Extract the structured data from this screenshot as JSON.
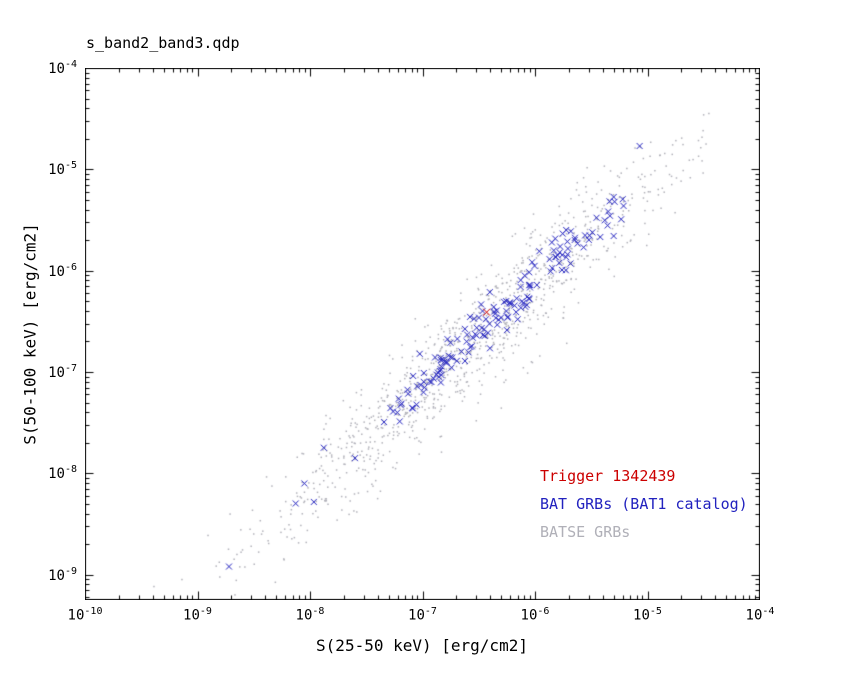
{
  "title": "s_band2_band3.qdp",
  "chart_data": {
    "type": "scatter",
    "title": "s_band2_band3.qdp",
    "xlabel": "S(25-50 keV) [erg/cm2]",
    "ylabel": "S(50-100 keV) [erg/cm2]",
    "x_scale": "log",
    "y_scale": "log",
    "x_range_log10": [
      -10,
      -4
    ],
    "y_range_log10": [
      -9.25,
      -4
    ],
    "x_tick_exponents": [
      -10,
      -9,
      -8,
      -7,
      -6,
      -5,
      -4
    ],
    "y_tick_exponents": [
      -9,
      -8,
      -7,
      -6,
      -5,
      -4
    ],
    "grid": false,
    "axis_color": "#000000",
    "legend": {
      "position": "inside-bottom-right",
      "entries": [
        {
          "label": "Trigger 1342439",
          "color": "#cc0000"
        },
        {
          "label": "BAT GRBs (BAT1 catalog)",
          "color": "#2222bf"
        },
        {
          "label": "BATSE GRBs",
          "color": "#b0b0b8"
        }
      ]
    },
    "series": [
      {
        "name": "BATSE GRBs",
        "marker": "dot",
        "marker_size": 1.5,
        "color": "#b0b0b8",
        "n": 1100,
        "seed": 1234,
        "logx_mean": -6.55,
        "logx_sd": 0.95,
        "logx_clip": [
          -9.55,
          -4.35
        ],
        "slope": 1.0,
        "intercept": -0.15,
        "scatter_dex": 0.27,
        "logy_clip": [
          -9.2,
          -4.4
        ]
      },
      {
        "name": "BAT GRBs (BAT1 catalog)",
        "marker": "cross",
        "marker_size": 3,
        "color": "#2222bf",
        "n": 160,
        "seed": 77,
        "logx_mean": -6.35,
        "logx_sd": 0.62,
        "logx_clip": [
          -8.3,
          -5.1
        ],
        "slope": 1.0,
        "intercept": -0.1,
        "scatter_dex": 0.12,
        "logy_clip": [
          -8.95,
          -4.75
        ],
        "extra_points_log10": [
          [
            -8.72,
            -8.92
          ],
          [
            -8.05,
            -8.1
          ],
          [
            -7.6,
            -7.85
          ],
          [
            -5.07,
            -4.77
          ]
        ]
      },
      {
        "name": "Trigger 1342439",
        "marker": "cross",
        "marker_size": 3.5,
        "color": "#cc0000",
        "points_log10": [
          [
            -6.43,
            -6.41
          ]
        ]
      }
    ]
  }
}
